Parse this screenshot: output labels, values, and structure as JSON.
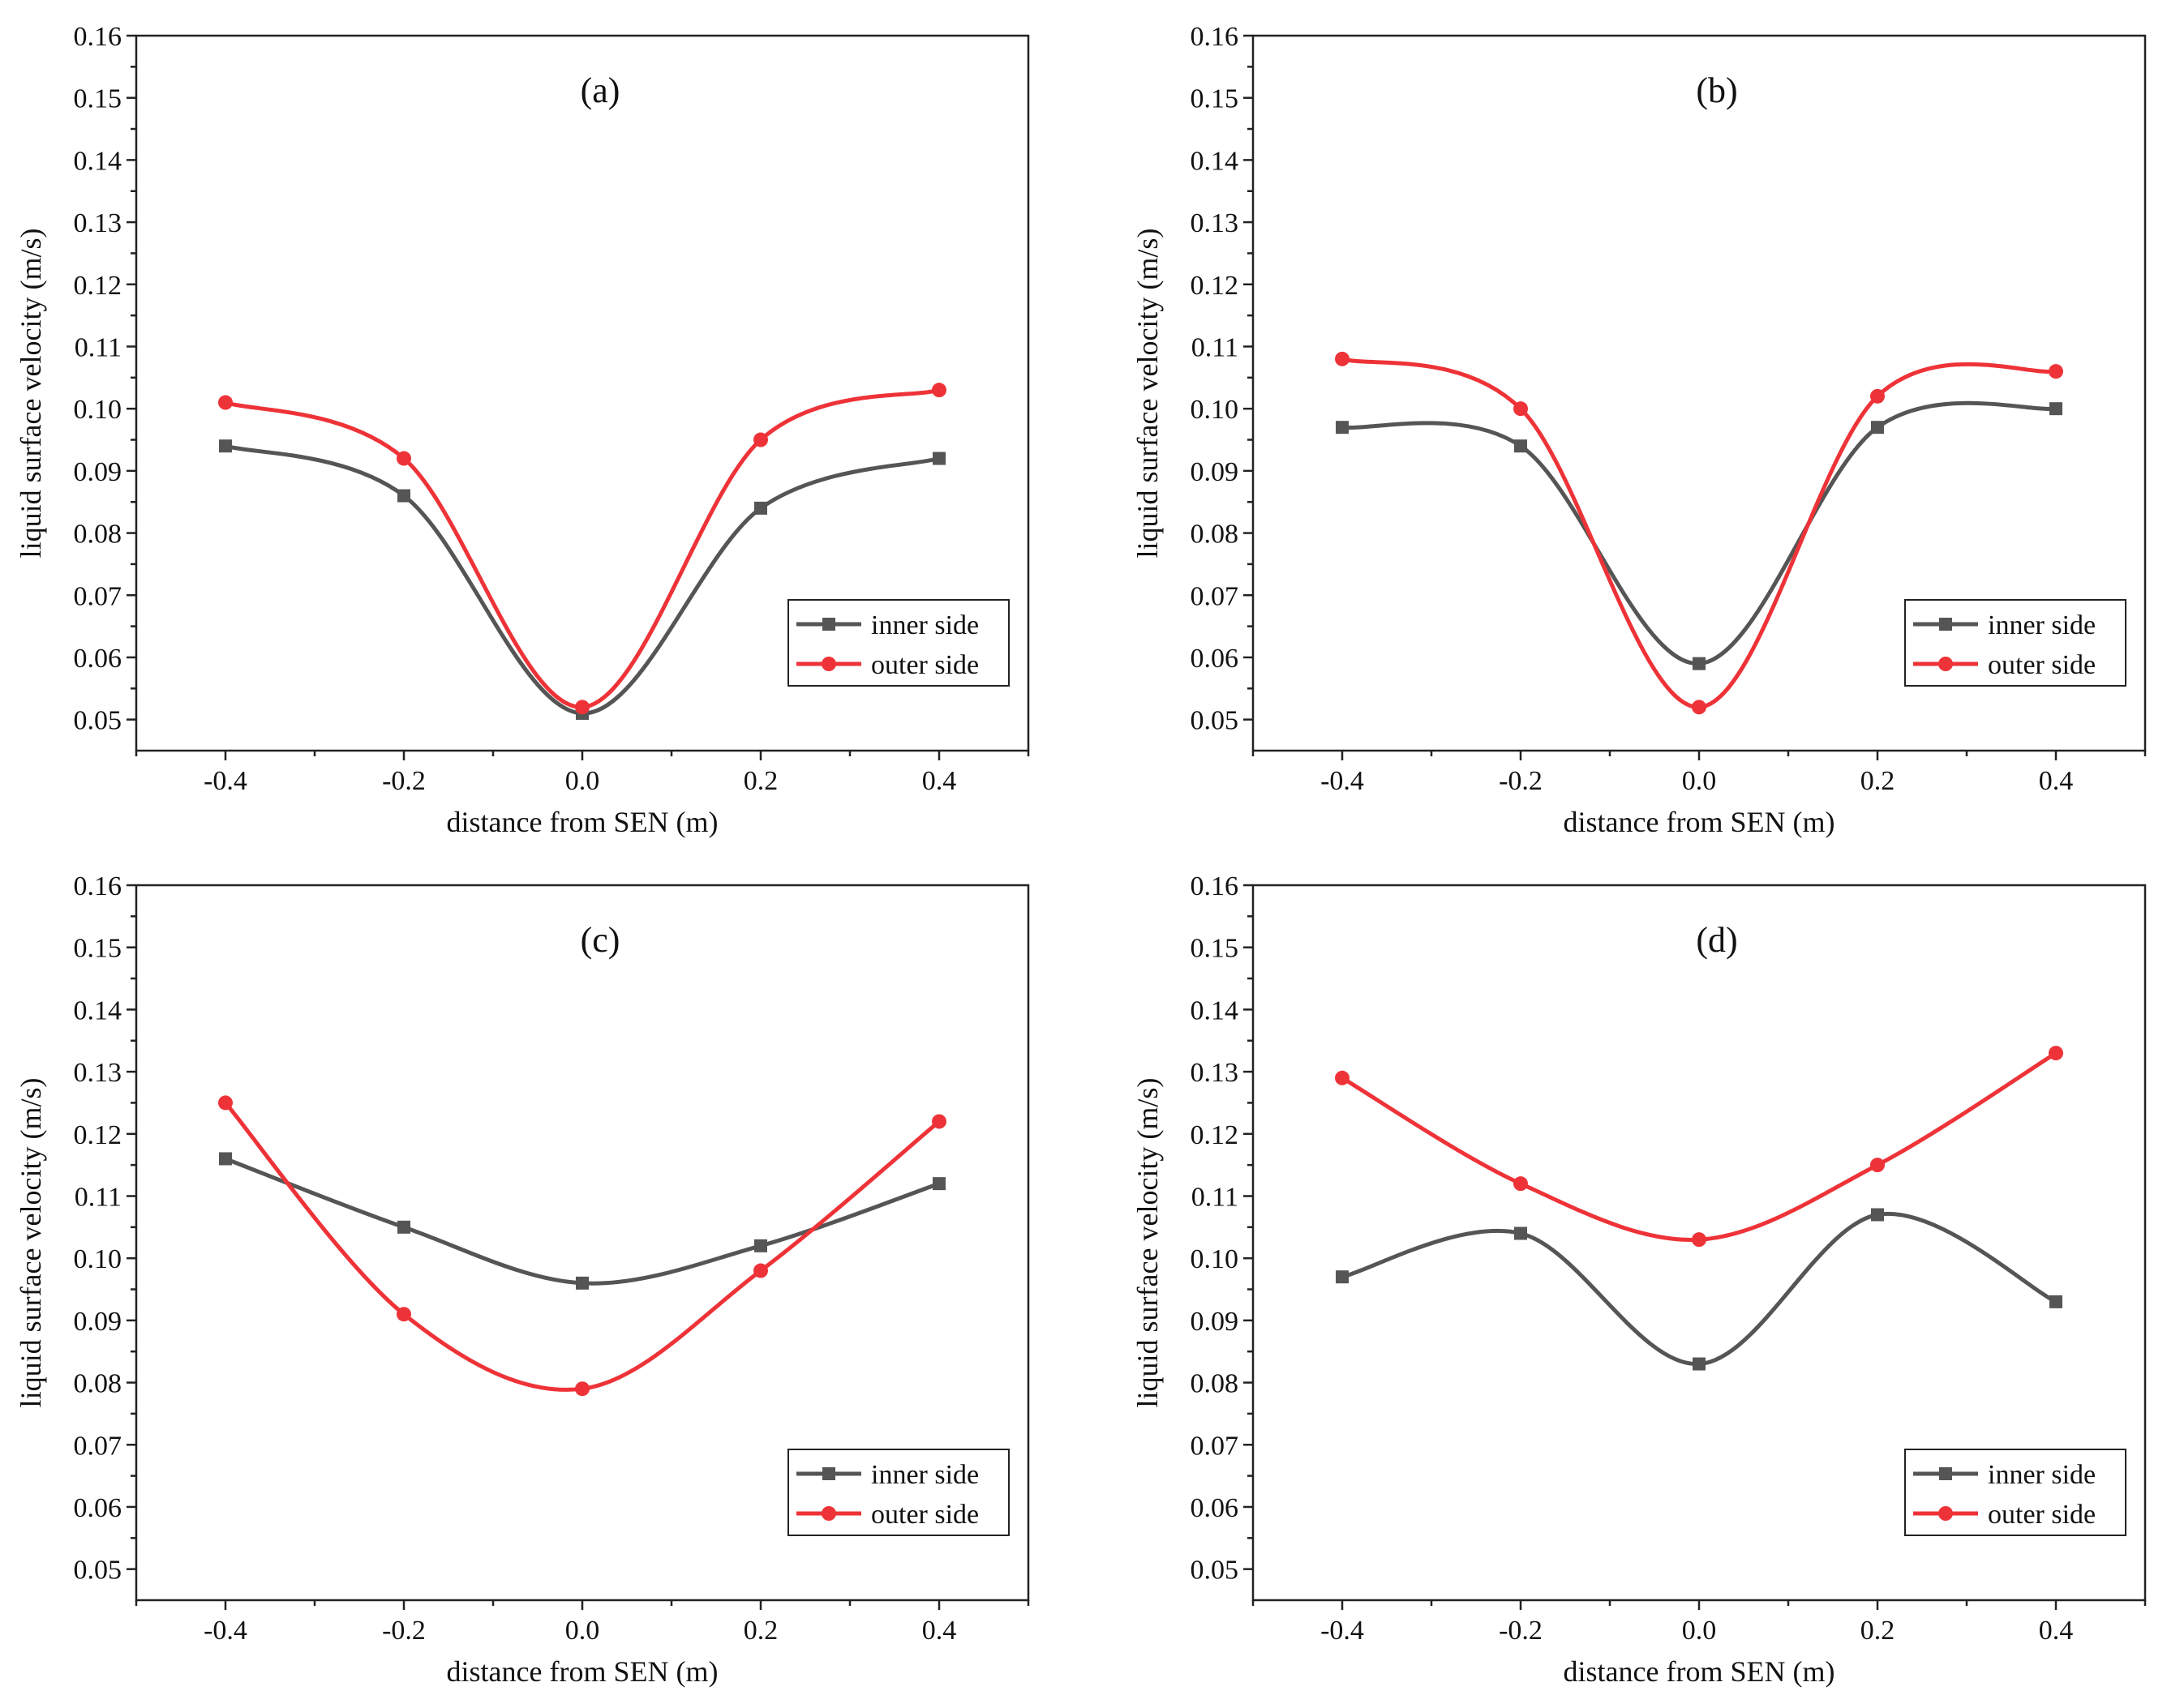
{
  "colors": {
    "inner": "#555555",
    "outer": "#ee3338"
  },
  "chart_data": [
    {
      "type": "line",
      "title": "(a)",
      "xlabel": "distance from SEN (m)",
      "ylabel": "liquid surface velocity (m/s)",
      "x": [
        -0.4,
        -0.2,
        0.0,
        0.2,
        0.4
      ],
      "xticks": [
        "-0.4",
        "-0.2",
        "0.0",
        "0.2",
        "0.4"
      ],
      "xlim": [
        -0.5,
        0.5
      ],
      "ylim": [
        0.045,
        0.16
      ],
      "yticks": [
        "0.05",
        "0.06",
        "0.07",
        "0.08",
        "0.09",
        "0.10",
        "0.11",
        "0.12",
        "0.13",
        "0.14",
        "0.15",
        "0.16"
      ],
      "legend": "bottom-right",
      "series": [
        {
          "name": "inner side",
          "marker": "square",
          "values": [
            0.094,
            0.086,
            0.051,
            0.084,
            0.092
          ]
        },
        {
          "name": "outer side",
          "marker": "circle",
          "values": [
            0.101,
            0.092,
            0.052,
            0.095,
            0.103
          ]
        }
      ]
    },
    {
      "type": "line",
      "title": "(b)",
      "xlabel": "distance from SEN (m)",
      "ylabel": "liquid surface velocity (m/s)",
      "x": [
        -0.4,
        -0.2,
        0.0,
        0.2,
        0.4
      ],
      "xticks": [
        "-0.4",
        "-0.2",
        "0.0",
        "0.2",
        "0.4"
      ],
      "xlim": [
        -0.5,
        0.5
      ],
      "ylim": [
        0.045,
        0.16
      ],
      "yticks": [
        "0.05",
        "0.06",
        "0.07",
        "0.08",
        "0.09",
        "0.10",
        "0.11",
        "0.12",
        "0.13",
        "0.14",
        "0.15",
        "0.16"
      ],
      "legend": "bottom-right",
      "series": [
        {
          "name": "inner side",
          "marker": "square",
          "values": [
            0.097,
            0.094,
            0.059,
            0.097,
            0.1
          ]
        },
        {
          "name": "outer side",
          "marker": "circle",
          "values": [
            0.108,
            0.1,
            0.052,
            0.102,
            0.106
          ]
        }
      ]
    },
    {
      "type": "line",
      "title": "(c)",
      "xlabel": "distance from SEN (m)",
      "ylabel": "liquid surface velocity (m/s)",
      "x": [
        -0.4,
        -0.2,
        0.0,
        0.2,
        0.4
      ],
      "xticks": [
        "-0.4",
        "-0.2",
        "0.0",
        "0.2",
        "0.4"
      ],
      "xlim": [
        -0.5,
        0.5
      ],
      "ylim": [
        0.045,
        0.16
      ],
      "yticks": [
        "0.05",
        "0.06",
        "0.07",
        "0.08",
        "0.09",
        "0.10",
        "0.11",
        "0.12",
        "0.13",
        "0.14",
        "0.15",
        "0.16"
      ],
      "legend": "bottom-right",
      "series": [
        {
          "name": "inner side",
          "marker": "square",
          "values": [
            0.116,
            0.105,
            0.096,
            0.102,
            0.112
          ]
        },
        {
          "name": "outer side",
          "marker": "circle",
          "values": [
            0.125,
            0.091,
            0.079,
            0.098,
            0.122
          ]
        }
      ]
    },
    {
      "type": "line",
      "title": "(d)",
      "xlabel": "distance from SEN (m)",
      "ylabel": "liquid surface velocity (m/s)",
      "x": [
        -0.4,
        -0.2,
        0.0,
        0.2,
        0.4
      ],
      "xticks": [
        "-0.4",
        "-0.2",
        "0.0",
        "0.2",
        "0.4"
      ],
      "xlim": [
        -0.5,
        0.5
      ],
      "ylim": [
        0.045,
        0.16
      ],
      "yticks": [
        "0.05",
        "0.06",
        "0.07",
        "0.08",
        "0.09",
        "0.10",
        "0.11",
        "0.12",
        "0.13",
        "0.14",
        "0.15",
        "0.16"
      ],
      "legend": "bottom-right",
      "series": [
        {
          "name": "inner side",
          "marker": "square",
          "values": [
            0.097,
            0.104,
            0.083,
            0.107,
            0.093
          ]
        },
        {
          "name": "outer side",
          "marker": "circle",
          "values": [
            0.129,
            0.112,
            0.103,
            0.115,
            0.133
          ]
        }
      ]
    }
  ]
}
